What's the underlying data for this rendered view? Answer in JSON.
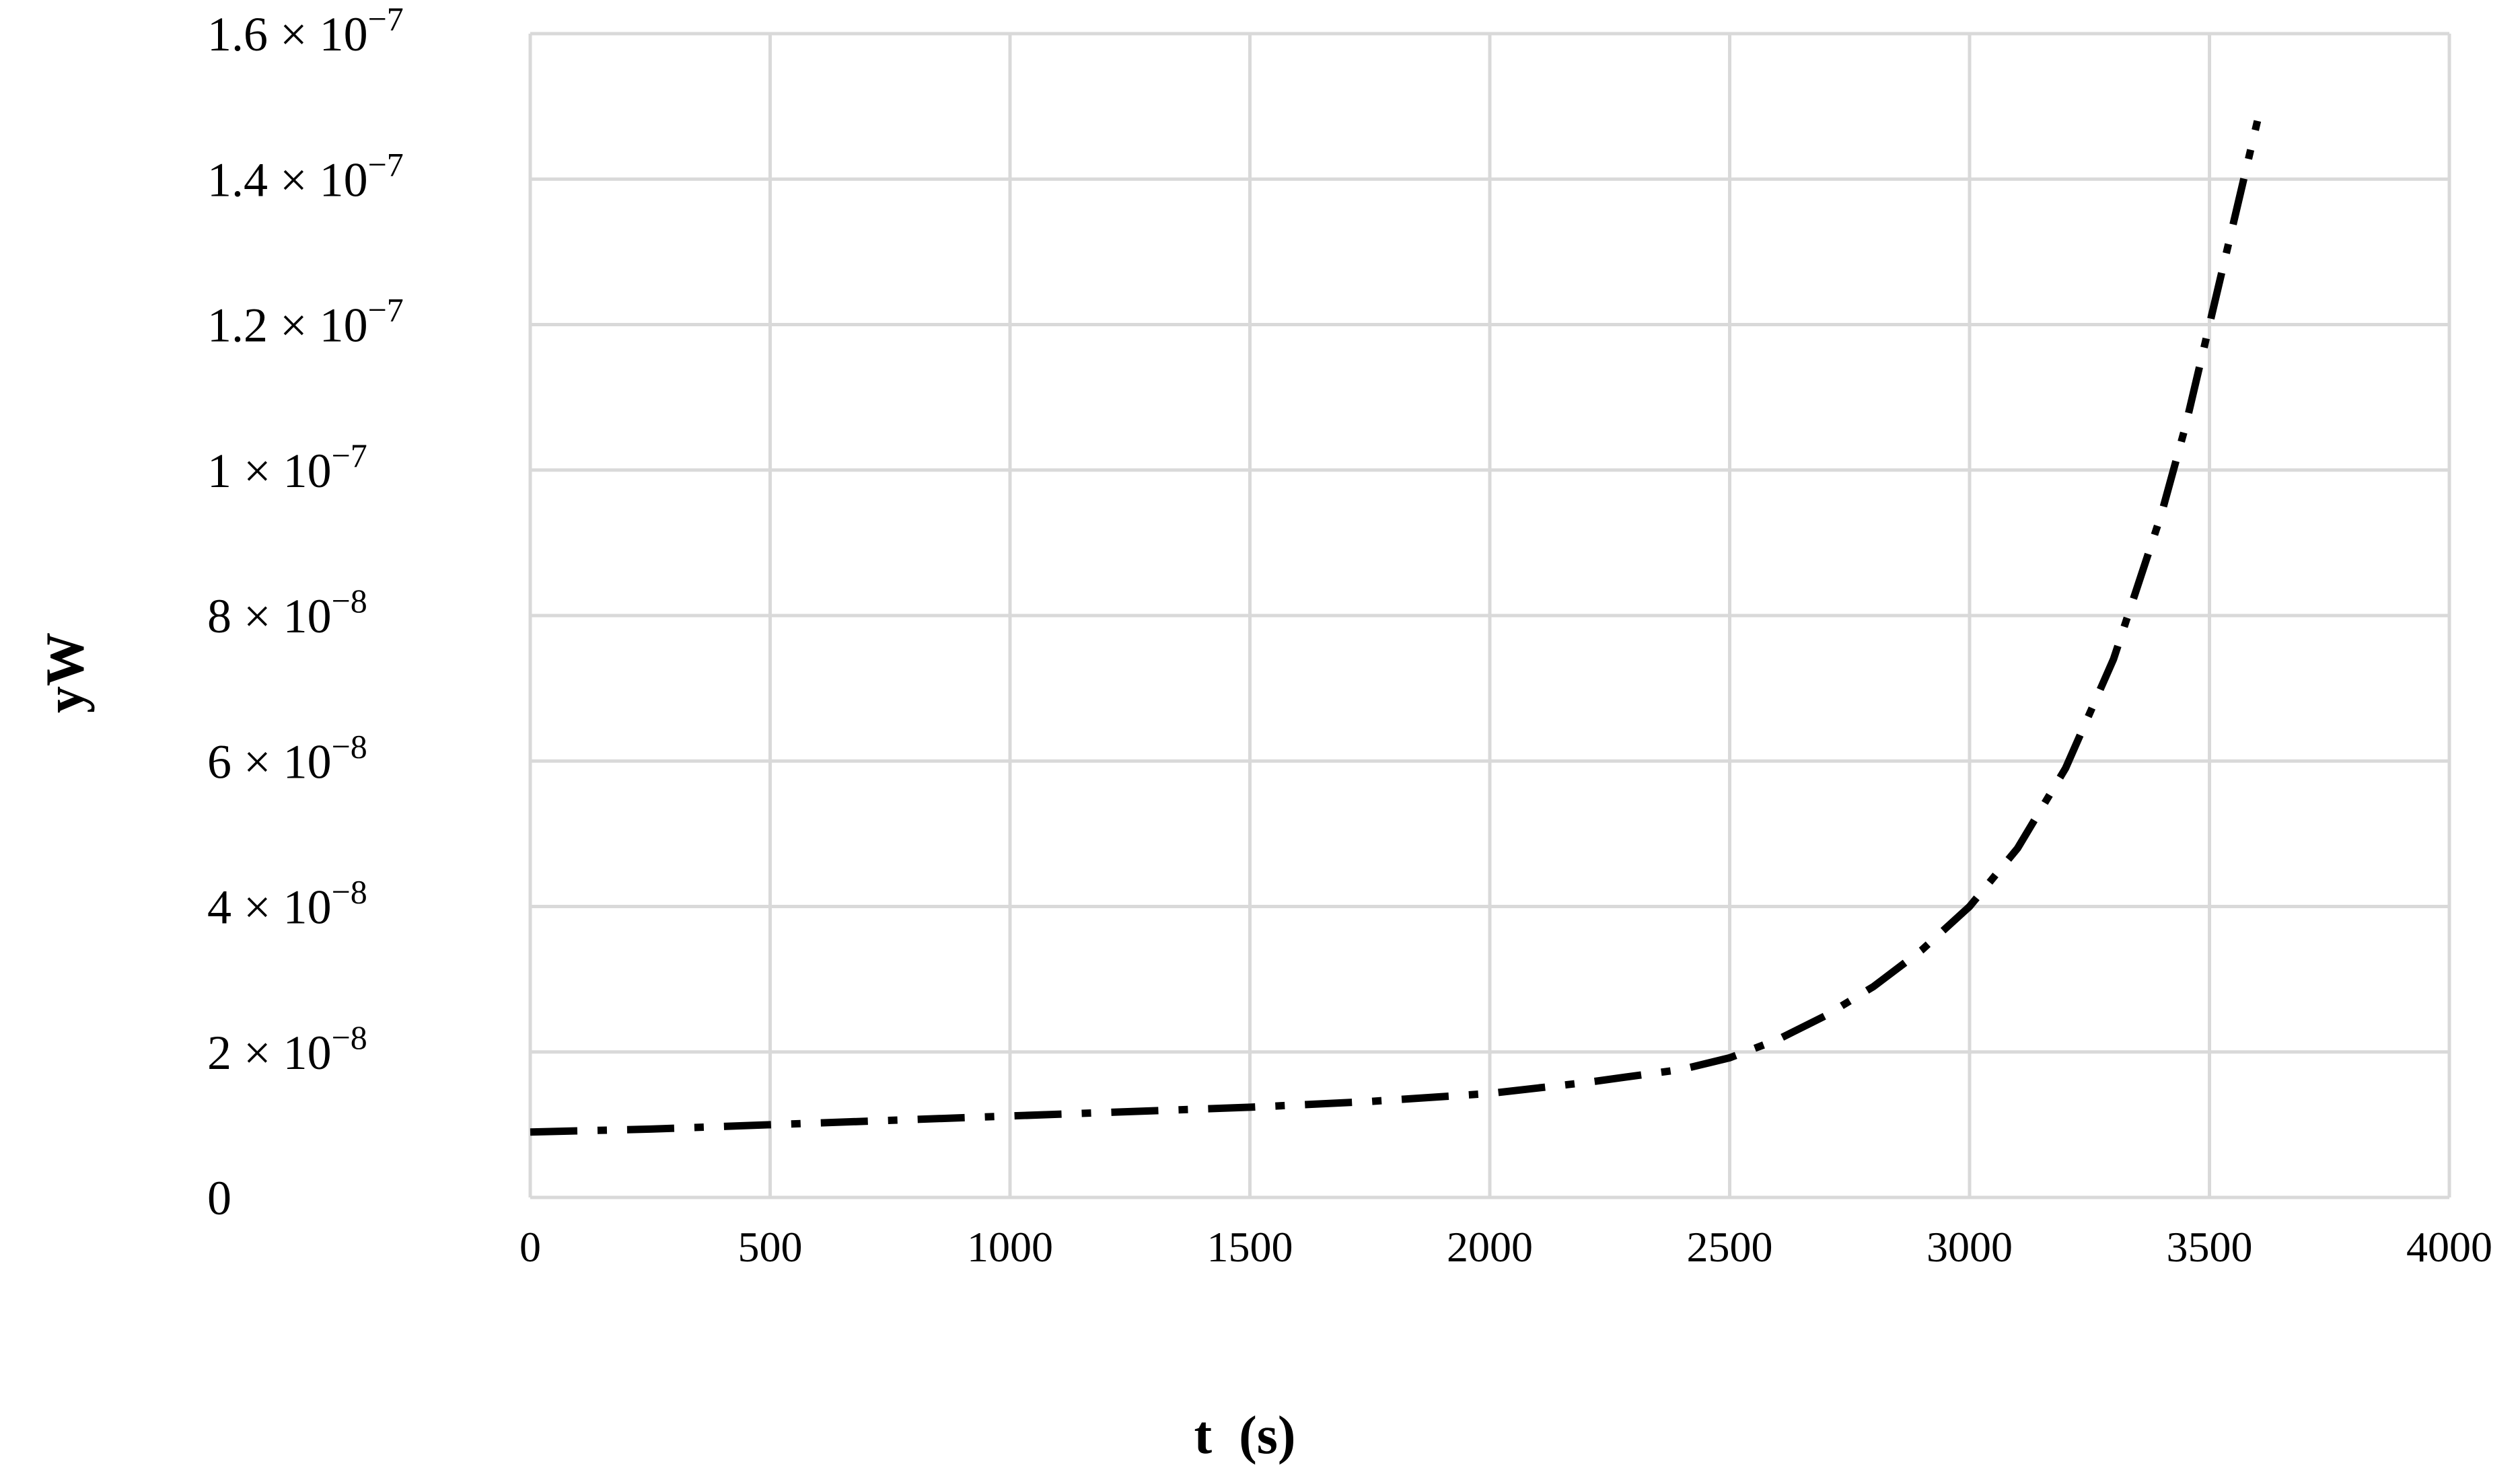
{
  "chart_data": {
    "type": "line",
    "title": "",
    "xlabel": "t  (s)",
    "ylabel": "yW",
    "xlim": [
      0,
      4000
    ],
    "ylim": [
      0,
      1.6e-07
    ],
    "grid": true,
    "legend": "none",
    "x_ticks": [
      0,
      500,
      1000,
      1500,
      2000,
      2500,
      3000,
      3500,
      4000
    ],
    "x_tick_labels": [
      "0",
      "500",
      "1000",
      "1500",
      "2000",
      "2500",
      "3000",
      "3500",
      "4000"
    ],
    "y_ticks": [
      0,
      2e-08,
      4e-08,
      6e-08,
      8e-08,
      1e-07,
      1.2e-07,
      1.4e-07,
      1.6e-07
    ],
    "y_tick_labels": [
      {
        "mantissa": "0",
        "exponent": ""
      },
      {
        "mantissa": "2 × 10",
        "exponent": "−8"
      },
      {
        "mantissa": "4 × 10",
        "exponent": "−8"
      },
      {
        "mantissa": "6 × 10",
        "exponent": "−8"
      },
      {
        "mantissa": "8 × 10",
        "exponent": "−8"
      },
      {
        "mantissa": "1 × 10",
        "exponent": "−7"
      },
      {
        "mantissa": "1.2 × 10",
        "exponent": "−7"
      },
      {
        "mantissa": "1.4 × 10",
        "exponent": "−7"
      },
      {
        "mantissa": "1.6 × 10",
        "exponent": "−7"
      }
    ],
    "series": [
      {
        "line_style": "dash-dot",
        "color": "#000000",
        "x": [
          0,
          250,
          500,
          750,
          1000,
          1250,
          1500,
          1750,
          2000,
          2200,
          2400,
          2500,
          2600,
          2700,
          2800,
          2900,
          3000,
          3100,
          3200,
          3300,
          3400,
          3450,
          3500,
          3550,
          3600
        ],
        "y": [
          9e-09,
          9.4e-09,
          1e-08,
          1.06e-08,
          1.12e-08,
          1.18e-08,
          1.24e-08,
          1.32e-08,
          1.43e-08,
          1.58e-08,
          1.76e-08,
          1.92e-08,
          2.17e-08,
          2.5e-08,
          2.9e-08,
          3.4e-08,
          4e-08,
          4.8e-08,
          5.9e-08,
          7.4e-08,
          9.4e-08,
          1.06e-07,
          1.2e-07,
          1.34e-07,
          1.48e-07
        ]
      }
    ]
  }
}
